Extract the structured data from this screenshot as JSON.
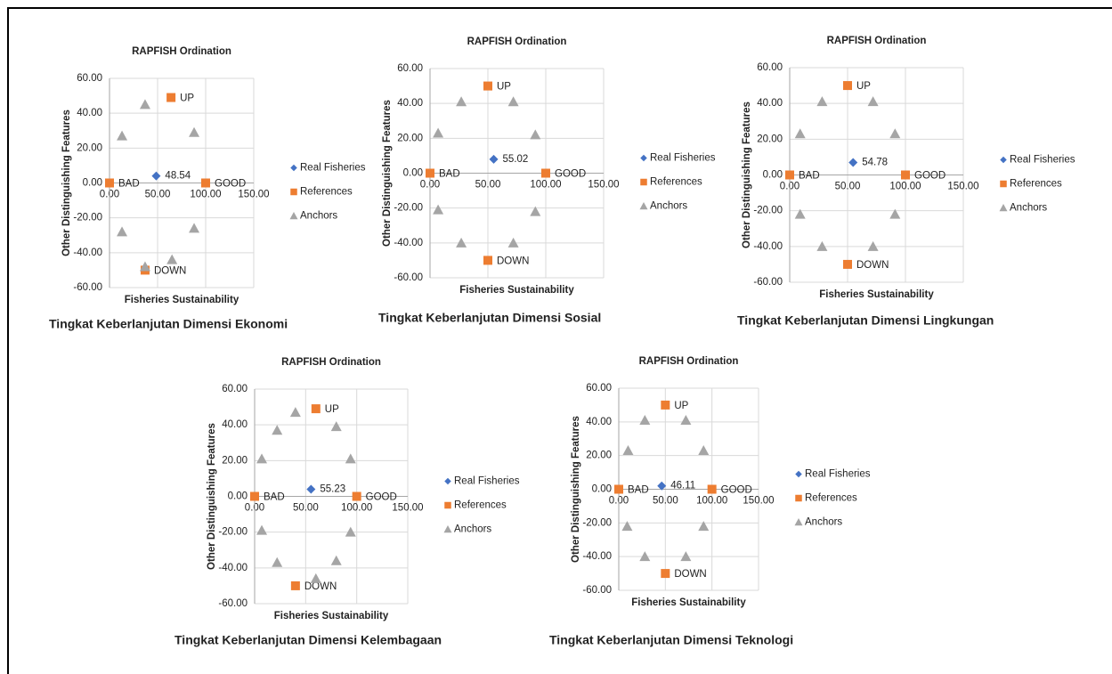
{
  "chart_data": [
    {
      "type": "scatter",
      "title": "RAPFISH Ordination",
      "xlabel": "Fisheries Sustainability",
      "ylabel": "Other Distinguishing Features",
      "caption": "Tingkat Keberlanjutan Dimensi Ekonomi",
      "xlim": [
        0,
        150
      ],
      "xticks": [
        {
          "value": 0,
          "label": "0.00"
        },
        {
          "value": 50,
          "label": "50.00"
        },
        {
          "value": 100,
          "label": "100.00"
        },
        {
          "value": 150,
          "label": "150.00"
        }
      ],
      "ylim": [
        -60,
        60
      ],
      "yticks": [
        {
          "value": -60,
          "label": "-60.00"
        },
        {
          "value": -40,
          "label": "-40.00"
        },
        {
          "value": -20,
          "label": "-20.00"
        },
        {
          "value": 0,
          "label": "0.00"
        },
        {
          "value": 20,
          "label": "20.00"
        },
        {
          "value": 40,
          "label": "40.00"
        },
        {
          "value": 60,
          "label": "60.00"
        }
      ],
      "grid": true,
      "legend": "right",
      "series": [
        {
          "name": "Real Fisheries",
          "color": "#4472c4",
          "marker": "diamond",
          "x": [
            48.54
          ],
          "y": [
            4
          ]
        },
        {
          "name": "References",
          "color": "#ed7d31",
          "marker": "square",
          "x": [
            0,
            100,
            64,
            37
          ],
          "y": [
            0,
            0,
            49,
            -50
          ],
          "point_labels": [
            "BAD",
            "GOOD",
            "UP",
            "DOWN"
          ]
        },
        {
          "name": "Anchors",
          "color": "#a5a5a5",
          "marker": "triangle",
          "x": [
            13,
            37,
            88,
            13,
            88,
            65,
            37
          ],
          "y": [
            27,
            45,
            29,
            -28,
            -26,
            -44,
            -48
          ]
        }
      ]
    },
    {
      "type": "scatter",
      "title": "RAPFISH Ordination",
      "xlabel": "Fisheries Sustainability",
      "ylabel": "Other Distinguishing Features",
      "caption": "Tingkat Keberlanjutan Dimensi Sosial",
      "xlim": [
        0,
        150
      ],
      "xticks": [
        {
          "value": 0,
          "label": "0.00"
        },
        {
          "value": 50,
          "label": "50.00"
        },
        {
          "value": 100,
          "label": "100.00"
        },
        {
          "value": 150,
          "label": "150.00"
        }
      ],
      "ylim": [
        -60,
        60
      ],
      "yticks": [
        {
          "value": -60,
          "label": "-60.00"
        },
        {
          "value": -40,
          "label": "-40.00"
        },
        {
          "value": -20,
          "label": "-20.00"
        },
        {
          "value": 0,
          "label": "0.00"
        },
        {
          "value": 20,
          "label": "20.00"
        },
        {
          "value": 40,
          "label": "40.00"
        },
        {
          "value": 60,
          "label": "60.00"
        }
      ],
      "grid": true,
      "legend": "right",
      "series": [
        {
          "name": "Real Fisheries",
          "color": "#4472c4",
          "marker": "diamond",
          "x": [
            55.02
          ],
          "y": [
            8
          ]
        },
        {
          "name": "References",
          "color": "#ed7d31",
          "marker": "square",
          "x": [
            0,
            100,
            50,
            50
          ],
          "y": [
            0,
            0,
            50,
            -50
          ],
          "point_labels": [
            "BAD",
            "GOOD",
            "UP",
            "DOWN"
          ]
        },
        {
          "name": "Anchors",
          "color": "#a5a5a5",
          "marker": "triangle",
          "x": [
            7,
            27,
            72,
            91,
            7,
            91,
            27,
            72
          ],
          "y": [
            23,
            41,
            41,
            22,
            -21,
            -22,
            -40,
            -40
          ]
        }
      ]
    },
    {
      "type": "scatter",
      "title": "RAPFISH Ordination",
      "xlabel": "Fisheries Sustainability",
      "ylabel": "Other Distinguishing Features",
      "caption": "Tingkat Keberlanjutan Dimensi Lingkungan",
      "xlim": [
        0,
        150
      ],
      "xticks": [
        {
          "value": 0,
          "label": "0.00"
        },
        {
          "value": 50,
          "label": "50.00"
        },
        {
          "value": 100,
          "label": "100.00"
        },
        {
          "value": 150,
          "label": "150.00"
        }
      ],
      "ylim": [
        -60,
        60
      ],
      "yticks": [
        {
          "value": -60,
          "label": "-60.00"
        },
        {
          "value": -40,
          "label": "-40.00"
        },
        {
          "value": -20,
          "label": "-20.00"
        },
        {
          "value": 0,
          "label": "0.00"
        },
        {
          "value": 20,
          "label": "20.00"
        },
        {
          "value": 40,
          "label": "40.00"
        },
        {
          "value": 60,
          "label": "60.00"
        }
      ],
      "grid": true,
      "legend": "right",
      "series": [
        {
          "name": "Real Fisheries",
          "color": "#4472c4",
          "marker": "diamond",
          "x": [
            54.78
          ],
          "y": [
            7
          ]
        },
        {
          "name": "References",
          "color": "#ed7d31",
          "marker": "square",
          "x": [
            0,
            100,
            50,
            50
          ],
          "y": [
            0,
            0,
            50,
            -50
          ],
          "point_labels": [
            "BAD",
            "GOOD",
            "UP",
            "DOWN"
          ]
        },
        {
          "name": "Anchors",
          "color": "#a5a5a5",
          "marker": "triangle",
          "x": [
            9,
            28,
            72,
            91,
            9,
            91,
            28,
            72
          ],
          "y": [
            23,
            41,
            41,
            23,
            -22,
            -22,
            -40,
            -40
          ]
        }
      ]
    },
    {
      "type": "scatter",
      "title": "RAPFISH Ordination",
      "xlabel": "Fisheries Sustainability",
      "ylabel": "Other Distinguishing Features",
      "caption": "Tingkat Keberlanjutan Dimensi Kelembagaan",
      "xlim": [
        0,
        150
      ],
      "xticks": [
        {
          "value": 0,
          "label": "0.00"
        },
        {
          "value": 50,
          "label": "50.00"
        },
        {
          "value": 100,
          "label": "100.00"
        },
        {
          "value": 150,
          "label": "150.00"
        }
      ],
      "ylim": [
        -60,
        60
      ],
      "yticks": [
        {
          "value": -60,
          "label": "-60.00"
        },
        {
          "value": -40,
          "label": "-40.00"
        },
        {
          "value": -20,
          "label": "-20.00"
        },
        {
          "value": 0,
          "label": "0.00"
        },
        {
          "value": 20,
          "label": "20.00"
        },
        {
          "value": 40,
          "label": "40.00"
        },
        {
          "value": 60,
          "label": "60.00"
        }
      ],
      "grid": true,
      "legend": "right",
      "series": [
        {
          "name": "Real Fisheries",
          "color": "#4472c4",
          "marker": "diamond",
          "x": [
            55.23
          ],
          "y": [
            4
          ]
        },
        {
          "name": "References",
          "color": "#ed7d31",
          "marker": "square",
          "x": [
            0,
            100,
            60,
            40
          ],
          "y": [
            0,
            0,
            49,
            -50
          ],
          "point_labels": [
            "BAD",
            "GOOD",
            "UP",
            "DOWN"
          ]
        },
        {
          "name": "Anchors",
          "color": "#a5a5a5",
          "marker": "triangle",
          "x": [
            7,
            22,
            40,
            80,
            94,
            7,
            22,
            60,
            80,
            94
          ],
          "y": [
            21,
            37,
            47,
            39,
            21,
            -19,
            -37,
            -46,
            -36,
            -20
          ]
        }
      ]
    },
    {
      "type": "scatter",
      "title": "RAPFISH Ordination",
      "xlabel": "Fisheries Sustainability",
      "ylabel": "Other Distinguishing Features",
      "caption": "Tingkat Keberlanjutan Dimensi Teknologi",
      "xlim": [
        0,
        150
      ],
      "xticks": [
        {
          "value": 0,
          "label": "0.00"
        },
        {
          "value": 50,
          "label": "50.00"
        },
        {
          "value": 100,
          "label": "100.00"
        },
        {
          "value": 150,
          "label": "150.00"
        }
      ],
      "ylim": [
        -60,
        60
      ],
      "yticks": [
        {
          "value": -60,
          "label": "-60.00"
        },
        {
          "value": -40,
          "label": "-40.00"
        },
        {
          "value": -20,
          "label": "-20.00"
        },
        {
          "value": 0,
          "label": "0.00"
        },
        {
          "value": 20,
          "label": "20.00"
        },
        {
          "value": 40,
          "label": "40.00"
        },
        {
          "value": 60,
          "label": "60.00"
        }
      ],
      "grid": true,
      "legend": "right",
      "series": [
        {
          "name": "Real Fisheries",
          "color": "#4472c4",
          "marker": "diamond",
          "x": [
            46.11
          ],
          "y": [
            2
          ]
        },
        {
          "name": "References",
          "color": "#ed7d31",
          "marker": "square",
          "x": [
            0,
            100,
            50,
            50
          ],
          "y": [
            0,
            0,
            50,
            -50
          ],
          "point_labels": [
            "BAD",
            "GOOD",
            "UP",
            "DOWN"
          ]
        },
        {
          "name": "Anchors",
          "color": "#a5a5a5",
          "marker": "triangle",
          "x": [
            10,
            28,
            72,
            91,
            9,
            91,
            28,
            72
          ],
          "y": [
            23,
            41,
            41,
            23,
            -22,
            -22,
            -40,
            -40
          ]
        }
      ]
    }
  ]
}
